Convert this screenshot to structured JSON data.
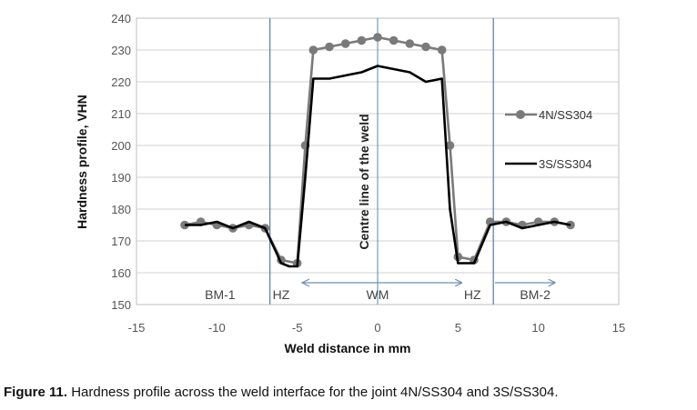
{
  "chart_data": {
    "type": "line",
    "xlabel": "Weld distance in mm",
    "ylabel": "Hardness profile, VHN",
    "xlim": [
      -15,
      15
    ],
    "ylim": [
      150,
      240
    ],
    "xticks": [
      -15,
      -10,
      -5,
      0,
      5,
      10,
      15
    ],
    "yticks": [
      150,
      160,
      170,
      180,
      190,
      200,
      210,
      220,
      230,
      240
    ],
    "grid": true,
    "legend_position": "right",
    "series": [
      {
        "name": "4N/SS304",
        "color": "#7a7a7a",
        "marker": "circle",
        "x": [
          -12,
          -11,
          -10,
          -9,
          -8,
          -7,
          -6,
          -5,
          -4.5,
          -4,
          -3,
          -2,
          -1,
          0,
          1,
          2,
          3,
          4,
          4.5,
          5,
          6,
          7,
          8,
          9,
          10,
          11,
          12
        ],
        "y": [
          175,
          176,
          175,
          174,
          175,
          174,
          164,
          163,
          200,
          230,
          231,
          232,
          233,
          234,
          233,
          232,
          231,
          230,
          200,
          165,
          164,
          176,
          176,
          175,
          176,
          176,
          175
        ]
      },
      {
        "name": "3S/SS304",
        "color": "#000000",
        "marker": "none",
        "x": [
          -12,
          -11,
          -10,
          -9,
          -8,
          -7,
          -6,
          -5.5,
          -5,
          -4.5,
          -4,
          -3,
          -2,
          -1,
          0,
          1,
          2,
          3,
          4,
          4.5,
          5,
          6,
          7,
          8,
          9,
          10,
          11,
          12
        ],
        "y": [
          175,
          175,
          176,
          174,
          176,
          174,
          163,
          162,
          162,
          190,
          221,
          221,
          222,
          223,
          225,
          224,
          223,
          220,
          221,
          180,
          163,
          163,
          175,
          176,
          174,
          175,
          176,
          175
        ]
      }
    ],
    "dividers_x": [
      -6.7,
      7.2
    ],
    "centre_line_x": 0,
    "centre_line_label": "Centre line of the weld",
    "regions": [
      {
        "label": "BM-1",
        "x": -9.8
      },
      {
        "label": "HZ",
        "x": -6
      },
      {
        "label": "WM",
        "x": 0
      },
      {
        "label": "HZ",
        "x": 5.9
      },
      {
        "label": "BM-2",
        "x": 9.8
      }
    ],
    "wm_arrow": [
      -4.7,
      5.2
    ],
    "bm2_arrow": [
      7.3,
      11
    ]
  },
  "caption": {
    "label": "Figure 11.",
    "text": " Hardness profile across the weld interface for the joint 4N/SS304 and 3S/SS304."
  }
}
